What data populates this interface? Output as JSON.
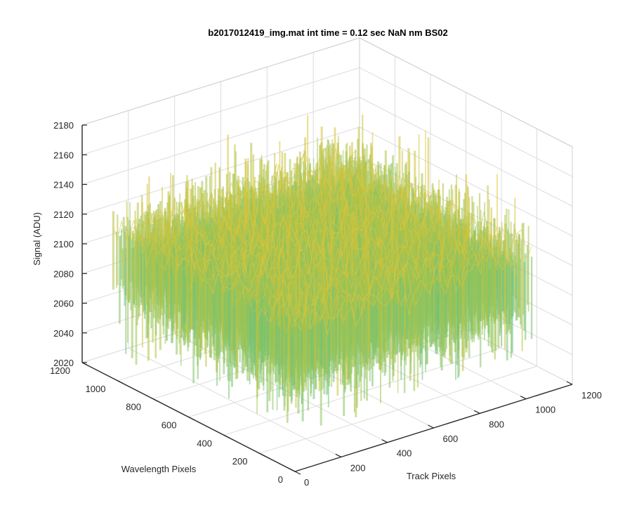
{
  "chart_data": {
    "type": "surface",
    "title": "b2017012419_img.mat int time = 0.12 sec  NaN nm BS02",
    "xlabel": "Track Pixels",
    "ylabel": "Wavelength Pixels",
    "zlabel": "Signal (ADU)",
    "xlim": [
      0,
      1200
    ],
    "ylim": [
      0,
      1200
    ],
    "zlim": [
      2020,
      2180
    ],
    "xticks": [
      "0",
      "200",
      "400",
      "600",
      "800",
      "1000",
      "1200"
    ],
    "yticks": [
      "0",
      "200",
      "400",
      "600",
      "800",
      "1000",
      "1200"
    ],
    "zticks": [
      "2020",
      "2040",
      "2060",
      "2080",
      "2100",
      "2120",
      "2140",
      "2160",
      "2180"
    ],
    "grid": true,
    "data_extent": {
      "x": [
        0,
        1024
      ],
      "y": [
        0,
        1024
      ]
    },
    "signal_mean": 2100,
    "signal_range": [
      2035,
      2170
    ],
    "colormap": [
      "#0072BD",
      "#1E9ED6",
      "#3FBCB0",
      "#8CC45E",
      "#C8C23A",
      "#E8C53A"
    ]
  }
}
